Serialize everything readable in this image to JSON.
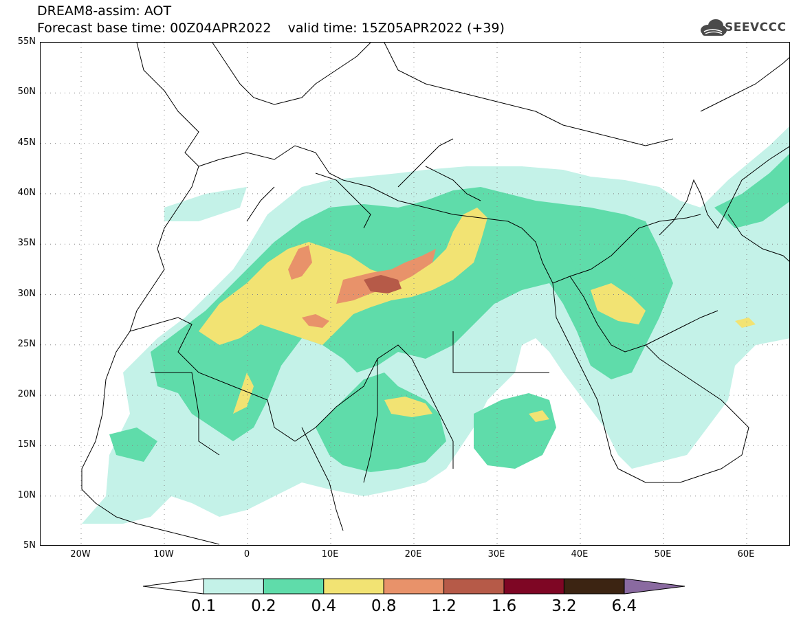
{
  "header": {
    "title_line1": "DREAM8-assim: AOT",
    "title_line2": "Forecast base time: 00Z04APR2022    valid time: 15Z05APR2022 (+39)",
    "logo_text": "SEEVCCC",
    "logo_icon": "cloud-icon"
  },
  "map": {
    "lat_labels": [
      "55N",
      "50N",
      "45N",
      "40N",
      "35N",
      "30N",
      "25N",
      "20N",
      "15N",
      "10N",
      "5N"
    ],
    "lon_labels": [
      "20W",
      "10W",
      "0",
      "10E",
      "20E",
      "30E",
      "40E",
      "50E",
      "60E"
    ],
    "colors": {
      "c1": "#c4f2e8",
      "c2": "#5fdcaa",
      "c3": "#f2e373",
      "c4": "#e8926a",
      "c5": "#b65a48",
      "c6": "#7e0624",
      "c7": "#3c2412",
      "c8": "#8a6aa0",
      "coast": "#000000",
      "grid": "#888888"
    }
  },
  "colorbar": {
    "labels": [
      "0.1",
      "0.2",
      "0.4",
      "0.8",
      "1.2",
      "1.6",
      "3.2",
      "6.4"
    ]
  }
}
